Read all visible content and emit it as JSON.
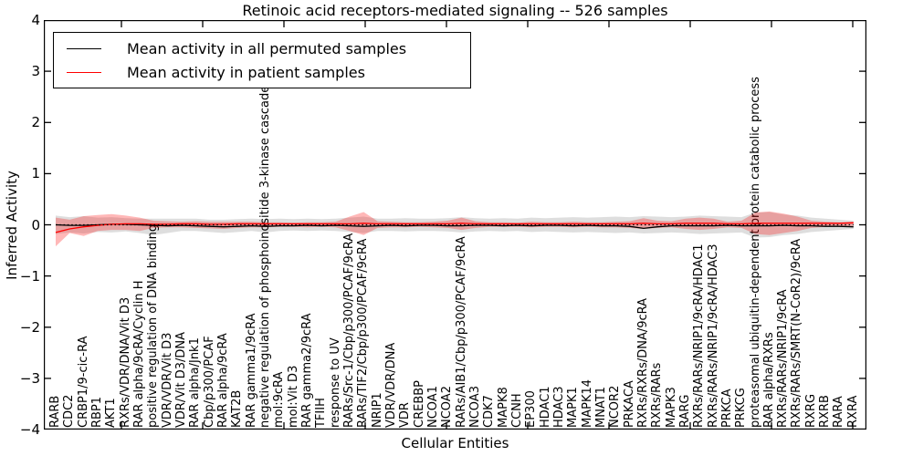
{
  "figure": {
    "title": "Retinoic acid receptors-mediated signaling -- 526 samples",
    "xlabel": "Cellular Entities",
    "ylabel": "Inferred Activity",
    "legend": {
      "entries": [
        {
          "label": "Mean activity in all permuted samples",
          "color": "#000000"
        },
        {
          "label": "Mean activity in patient samples",
          "color": "#ff0000"
        }
      ]
    }
  },
  "chart_data": {
    "type": "line",
    "title": "Retinoic acid receptors-mediated signaling -- 526 samples",
    "xlabel": "Cellular Entities",
    "ylabel": "Inferred Activity",
    "ylim": [
      -4,
      4
    ],
    "yticks": [
      4,
      3,
      2,
      1,
      0,
      -1,
      -2,
      -3,
      -4
    ],
    "ytick_labels": [
      "4",
      "3",
      "2",
      "1",
      "0",
      "−1",
      "−2",
      "−3",
      "−4"
    ],
    "grid": false,
    "legend_position": "upper left",
    "x_tick_label_rotation": 90,
    "categories": [
      "RARB",
      "CDC2",
      "CRBP1/9-cic-RA",
      "RBP1",
      "AKT1",
      "RXRs/VDR/DNA/Vit D3",
      "RAR alpha/9cRA/Cyclin H",
      "positive regulation of DNA binding",
      "VDR/VDR/Vit D3",
      "VDR/Vit D3/DNA",
      "RAR alpha/Jnk1",
      "Cbp/p300/PCAF",
      "RAR alpha/9cRA",
      "KAT2B",
      "RAR gamma1/9cRA",
      "negative regulation of phosphoinositide 3-kinase cascade",
      "mol:9cRA",
      "mol:Vit D3",
      "RAR gamma2/9cRA",
      "TFIIH",
      "response to UV",
      "RARs/Src-1/Cbp/p300/PCAF/9cRA",
      "RARs/TIF2/Cbp/p300/PCAF/9cRA",
      "NRIP1",
      "VDR/VDR/DNA",
      "VDR",
      "CREBBP",
      "NCOA1",
      "NCOA2",
      "RARs/AIB1/Cbp/p300/PCAF/9cRA",
      "NCOA3",
      "CDK7",
      "MAPK8",
      "CCNH",
      "EP300",
      "HDAC1",
      "HDAC3",
      "MAPK1",
      "MAPK14",
      "MNAT1",
      "NCOR2",
      "PRKACA",
      "RXRs/RXRs/DNA/9cRA",
      "RXRs/RARs",
      "MAPK3",
      "RARG",
      "RXRs/RARs/NRIP1/9cRA/HDAC1",
      "RXRs/RARs/NRIP1/9cRA/HDAC3",
      "PRKCA",
      "PRKCG",
      "proteasomal ubiquitin-dependent protein catabolic process",
      "RAR alpha/RXRs",
      "RXRs/RARs/NRIP1/9cRA",
      "RXRs/RARs/SMRT(N-CoR2)/9cRA",
      "RXRG",
      "RXRB",
      "RARA",
      "RXRA"
    ],
    "series": [
      {
        "name": "Mean activity in all permuted samples",
        "color": "#000000",
        "style": "solid",
        "values": [
          0.0,
          -0.01,
          -0.01,
          0.0,
          0.01,
          0.01,
          0.0,
          -0.01,
          -0.02,
          -0.01,
          -0.02,
          -0.03,
          -0.04,
          -0.03,
          -0.02,
          -0.03,
          -0.02,
          -0.02,
          -0.01,
          -0.02,
          -0.01,
          -0.02,
          -0.03,
          -0.02,
          -0.01,
          -0.02,
          -0.01,
          -0.01,
          -0.02,
          -0.02,
          -0.01,
          -0.01,
          -0.02,
          -0.01,
          -0.02,
          -0.01,
          -0.01,
          -0.02,
          -0.01,
          -0.02,
          -0.02,
          -0.03,
          -0.07,
          -0.04,
          -0.02,
          -0.02,
          -0.02,
          -0.02,
          -0.01,
          -0.02,
          -0.02,
          -0.02,
          -0.01,
          -0.02,
          -0.02,
          -0.03,
          -0.03,
          -0.04
        ]
      },
      {
        "name": "Mean activity in patient samples",
        "color": "#ff0000",
        "style": "solid",
        "values": [
          -0.15,
          -0.08,
          -0.04,
          -0.01,
          0.01,
          0.02,
          0.02,
          0.01,
          0.01,
          0.02,
          0.02,
          0.01,
          0.01,
          0.02,
          0.02,
          0.02,
          0.02,
          0.02,
          0.02,
          0.02,
          0.02,
          0.02,
          0.03,
          0.02,
          0.02,
          0.02,
          0.02,
          0.02,
          0.02,
          0.03,
          0.02,
          0.02,
          0.02,
          0.02,
          0.02,
          0.02,
          0.02,
          0.02,
          0.02,
          0.02,
          0.02,
          0.02,
          0.03,
          0.02,
          0.02,
          0.03,
          0.03,
          0.03,
          0.02,
          0.02,
          0.03,
          0.03,
          0.03,
          0.03,
          0.03,
          0.03,
          0.03,
          0.04
        ]
      },
      {
        "name": "zero-reference",
        "color": "#000000",
        "style": "dotted",
        "values": [
          0,
          0,
          0,
          0,
          0,
          0,
          0,
          0,
          0,
          0,
          0,
          0,
          0,
          0,
          0,
          0,
          0,
          0,
          0,
          0,
          0,
          0,
          0,
          0,
          0,
          0,
          0,
          0,
          0,
          0,
          0,
          0,
          0,
          0,
          0,
          0,
          0,
          0,
          0,
          0,
          0,
          0,
          0,
          0,
          0,
          0,
          0,
          0,
          0,
          0,
          0,
          0,
          0,
          0,
          0,
          0,
          0,
          0
        ]
      }
    ],
    "bands": [
      {
        "name": "permuted-samples-range",
        "color": "#000000",
        "opacity": 0.13,
        "lower": [
          -0.18,
          -0.15,
          -0.17,
          -0.14,
          -0.15,
          -0.13,
          -0.16,
          -0.2,
          -0.16,
          -0.12,
          -0.12,
          -0.14,
          -0.16,
          -0.14,
          -0.12,
          -0.15,
          -0.12,
          -0.11,
          -0.12,
          -0.11,
          -0.12,
          -0.14,
          -0.16,
          -0.12,
          -0.12,
          -0.13,
          -0.12,
          -0.12,
          -0.13,
          -0.15,
          -0.13,
          -0.12,
          -0.13,
          -0.12,
          -0.14,
          -0.13,
          -0.14,
          -0.15,
          -0.14,
          -0.15,
          -0.16,
          -0.15,
          -0.17,
          -0.16,
          -0.15,
          -0.16,
          -0.18,
          -0.17,
          -0.16,
          -0.15,
          -0.25,
          -0.24,
          -0.2,
          -0.18,
          -0.14,
          -0.12,
          -0.1,
          -0.08
        ],
        "upper": [
          0.18,
          0.15,
          0.17,
          0.14,
          0.15,
          0.13,
          0.12,
          0.12,
          0.12,
          0.12,
          0.12,
          0.1,
          0.1,
          0.11,
          0.12,
          0.11,
          0.12,
          0.11,
          0.12,
          0.11,
          0.12,
          0.14,
          0.16,
          0.12,
          0.12,
          0.13,
          0.12,
          0.12,
          0.13,
          0.15,
          0.13,
          0.12,
          0.13,
          0.12,
          0.14,
          0.13,
          0.14,
          0.15,
          0.14,
          0.15,
          0.16,
          0.15,
          0.17,
          0.16,
          0.15,
          0.16,
          0.18,
          0.17,
          0.16,
          0.15,
          0.24,
          0.25,
          0.2,
          0.18,
          0.14,
          0.12,
          0.1,
          0.08
        ]
      },
      {
        "name": "patient-samples-range",
        "color": "#ff0000",
        "opacity": 0.28,
        "lower": [
          -0.42,
          -0.16,
          -0.22,
          -0.12,
          -0.1,
          -0.1,
          -0.12,
          -0.06,
          -0.05,
          -0.05,
          -0.06,
          -0.07,
          -0.08,
          -0.06,
          -0.05,
          -0.05,
          -0.04,
          -0.04,
          -0.05,
          -0.04,
          -0.05,
          -0.12,
          -0.2,
          -0.06,
          -0.05,
          -0.05,
          -0.04,
          -0.05,
          -0.06,
          -0.1,
          -0.06,
          -0.04,
          -0.04,
          -0.04,
          -0.05,
          -0.04,
          -0.04,
          -0.05,
          -0.04,
          -0.05,
          -0.05,
          -0.06,
          -0.08,
          -0.06,
          -0.05,
          -0.08,
          -0.1,
          -0.08,
          -0.05,
          -0.06,
          -0.18,
          -0.2,
          -0.16,
          -0.12,
          -0.06,
          -0.04,
          -0.03,
          -0.02
        ],
        "upper": [
          0.14,
          0.1,
          0.17,
          0.19,
          0.21,
          0.18,
          0.14,
          0.08,
          0.07,
          0.06,
          0.07,
          0.06,
          0.06,
          0.06,
          0.06,
          0.05,
          0.05,
          0.04,
          0.05,
          0.05,
          0.06,
          0.16,
          0.25,
          0.07,
          0.06,
          0.05,
          0.05,
          0.06,
          0.08,
          0.14,
          0.07,
          0.05,
          0.05,
          0.04,
          0.06,
          0.05,
          0.05,
          0.06,
          0.05,
          0.05,
          0.06,
          0.07,
          0.13,
          0.08,
          0.07,
          0.12,
          0.14,
          0.12,
          0.06,
          0.08,
          0.24,
          0.26,
          0.22,
          0.16,
          0.08,
          0.06,
          0.05,
          0.06
        ]
      }
    ]
  }
}
